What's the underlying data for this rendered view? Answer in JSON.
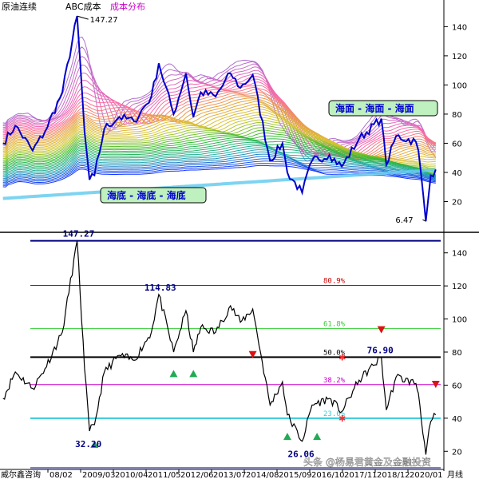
{
  "header": {
    "symbol": "原油连续",
    "indicator": "ABC成本",
    "overlay": "成本分布",
    "indicator_color": "#000000",
    "overlay_color": "#cc00cc"
  },
  "watermark": "头条 @杨易君黄金及金融投资",
  "colors": {
    "price_top": "#0000cc",
    "price_bottom": "#000000",
    "cost_high": "#b06fd0",
    "cost_mid": "#33bb33",
    "cost_low": "#1133ff",
    "sky": "#66ccee",
    "callout_bg": "#bff0bf",
    "callout_border": "#000000",
    "callout_text": "#0000cc",
    "line_max": "#000080",
    "line_809": "#cc0000",
    "line_618": "#33cc33",
    "line_50": "#000000",
    "line_382": "#cc00cc",
    "line_236": "#33ccdd",
    "line_min": "#000080",
    "up_marker": "#22aa55",
    "down_marker": "#dd1111",
    "star": "#ee3333"
  },
  "chart_data": [
    {
      "type": "line",
      "title": "原油连续",
      "ylim": [
        0,
        155
      ],
      "yticks": [
        20,
        40,
        60,
        80,
        100,
        120,
        140
      ],
      "annotations": [
        {
          "text": "147.27",
          "x": "2008/07",
          "y": 147.27
        },
        {
          "text": "6.47",
          "x": "2020/04",
          "y": 6.47
        }
      ],
      "callouts": [
        {
          "text": "海面 - 海面 - 海面",
          "near_y": 75
        },
        {
          "text": "海底 - 海底 - 海底",
          "near_y": 28
        }
      ],
      "series": [
        {
          "x": [
            "2006/01",
            "2006/06",
            "2007/01",
            "2007/06",
            "2008/01",
            "2008/07",
            "2008/10",
            "2008/12",
            "2009/02",
            "2009/06",
            "2009/12",
            "2010/06",
            "2011/01",
            "2011/04",
            "2011/10",
            "2012/03",
            "2012/06",
            "2012/09",
            "2013/03",
            "2013/09",
            "2014/01",
            "2014/06",
            "2015/01",
            "2015/06",
            "2015/08",
            "2016/02",
            "2016/06",
            "2017/01",
            "2017/06",
            "2018/01",
            "2018/10",
            "2018/12",
            "2019/04",
            "2019/12",
            "2020/01",
            "2020/04",
            "2020/06",
            "2020/08"
          ],
          "y": [
            60,
            72,
            55,
            68,
            95,
            147.27,
            68,
            35,
            38,
            70,
            78,
            75,
            92,
            114.83,
            80,
            108,
            78,
            95,
            92,
            108,
            98,
            107,
            48,
            60,
            40,
            26.06,
            48,
            52,
            44,
            63,
            76.9,
            45,
            65,
            61,
            55,
            6.47,
            38,
            42
          ]
        }
      ]
    },
    {
      "type": "line",
      "ylim": [
        10,
        150
      ],
      "yticks": [
        20,
        40,
        60,
        80,
        100,
        120,
        140
      ],
      "xticks": [
        "08/02",
        "2009/03",
        "2010/04",
        "2011/05",
        "2012/06",
        "2013/07",
        "2014/08",
        "2015/09",
        "2016/10",
        "2017/11",
        "2018/12",
        "2020/01"
      ],
      "left_label": "威尔鑫咨询",
      "right_label": "月线",
      "levels": [
        {
          "value": 147.27,
          "label": "",
          "key": "line_max"
        },
        {
          "value": 120.3,
          "label": "80.9%",
          "key": "line_809"
        },
        {
          "value": 94.2,
          "label": "61.8%",
          "key": "line_618"
        },
        {
          "value": 76.9,
          "label": "50.0%",
          "key": "line_50"
        },
        {
          "value": 60.3,
          "label": "38.2%",
          "key": "line_382"
        },
        {
          "value": 40.0,
          "label": "23.6%",
          "key": "line_236"
        },
        {
          "value": 10.0,
          "label": "",
          "key": "line_min"
        }
      ],
      "value_labels": [
        {
          "text": "147.27",
          "x": "2008/07",
          "y": 147.27
        },
        {
          "text": "114.83",
          "x": "2011/04",
          "y": 114.83
        },
        {
          "text": "32.20",
          "x": "2008/12",
          "y": 32.2
        },
        {
          "text": "26.06",
          "x": "2016/02",
          "y": 26.06
        },
        {
          "text": "76.90",
          "x": "2018/10",
          "y": 76.9
        }
      ],
      "up_markers": [
        {
          "x": "2009/02",
          "y": 32.2
        },
        {
          "x": "2011/10",
          "y": 75
        },
        {
          "x": "2012/06",
          "y": 75
        },
        {
          "x": "2015/08",
          "y": 37
        },
        {
          "x": "2016/08",
          "y": 37
        }
      ],
      "down_markers": [
        {
          "x": "2014/06",
          "y": 70
        },
        {
          "x": "2018/10",
          "y": 85
        },
        {
          "x": "2020/08",
          "y": 52
        }
      ],
      "stars": [
        {
          "x": "2017/06",
          "y": 76.9
        },
        {
          "x": "2017/06",
          "y": 40
        }
      ],
      "series": [
        {
          "x": [
            "2006/01",
            "2006/06",
            "2007/01",
            "2007/06",
            "2008/01",
            "2008/07",
            "2008/10",
            "2008/12",
            "2009/02",
            "2009/06",
            "2009/12",
            "2010/06",
            "2011/01",
            "2011/04",
            "2011/10",
            "2012/03",
            "2012/06",
            "2012/09",
            "2013/03",
            "2013/09",
            "2014/01",
            "2014/06",
            "2015/01",
            "2015/06",
            "2015/08",
            "2016/02",
            "2016/06",
            "2017/01",
            "2017/06",
            "2018/01",
            "2018/10",
            "2018/12",
            "2019/04",
            "2019/12",
            "2020/01",
            "2020/04",
            "2020/06",
            "2020/08"
          ],
          "y": [
            52,
            68,
            58,
            70,
            92,
            147.27,
            70,
            32.2,
            36,
            68,
            78,
            75,
            92,
            114.83,
            80,
            105,
            80,
            95,
            92,
            108,
            98,
            106,
            48,
            62,
            42,
            26.06,
            48,
            52,
            44,
            63,
            76.9,
            45,
            65,
            61,
            55,
            18,
            38,
            42
          ]
        }
      ]
    }
  ]
}
